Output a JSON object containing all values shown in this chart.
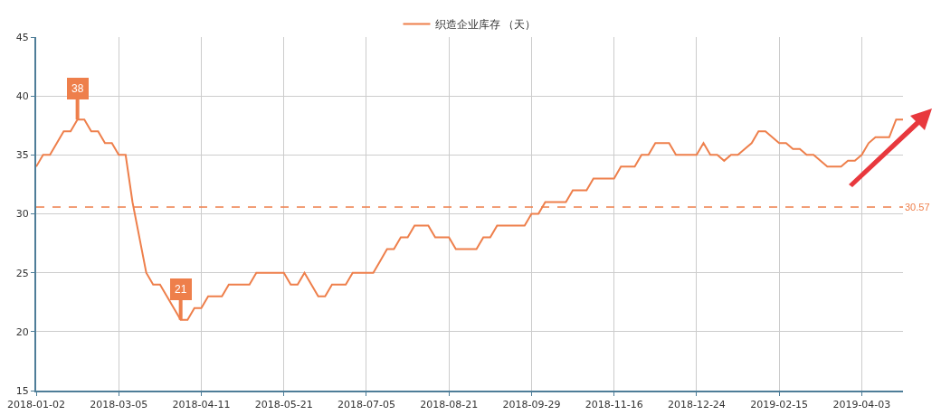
{
  "chart_data": {
    "type": "line",
    "categories": [
      "2018-01-02",
      null,
      null,
      null,
      null,
      null,
      null,
      null,
      null,
      null,
      null,
      null,
      "2018-03-05",
      null,
      null,
      null,
      null,
      null,
      null,
      null,
      null,
      null,
      null,
      null,
      "2018-04-11",
      null,
      null,
      null,
      null,
      null,
      null,
      null,
      null,
      null,
      null,
      null,
      "2018-05-21",
      null,
      null,
      null,
      null,
      null,
      null,
      null,
      null,
      null,
      null,
      null,
      "2018-07-05",
      null,
      null,
      null,
      null,
      null,
      null,
      null,
      null,
      null,
      null,
      null,
      "2018-08-21",
      null,
      null,
      null,
      null,
      null,
      null,
      null,
      null,
      null,
      null,
      null,
      "2018-09-29",
      null,
      null,
      null,
      null,
      null,
      null,
      null,
      null,
      null,
      null,
      null,
      "2018-11-16",
      null,
      null,
      null,
      null,
      null,
      null,
      null,
      null,
      null,
      null,
      null,
      "2018-12-24",
      null,
      null,
      null,
      null,
      null,
      null,
      null,
      null,
      null,
      null,
      null,
      "2019-02-15",
      null,
      null,
      null,
      null,
      null,
      null,
      null,
      null,
      null,
      null,
      null,
      "2019-04-03",
      null,
      null,
      null,
      null,
      null,
      null
    ],
    "series": [
      {
        "name": "织造企业库存 （天）",
        "color": "#ee7f4b",
        "values": [
          34,
          35,
          35,
          36,
          37,
          37,
          38,
          38,
          37,
          37,
          36,
          36,
          35,
          35,
          31,
          28,
          25,
          24,
          24,
          23,
          22,
          21,
          21,
          22,
          22,
          23,
          23,
          23,
          24,
          24,
          24,
          24,
          25,
          25,
          25,
          25,
          25,
          24,
          24,
          25,
          24,
          23,
          23,
          24,
          24,
          24,
          25,
          25,
          25,
          25,
          26,
          27,
          27,
          28,
          28,
          29,
          29,
          29,
          28,
          28,
          28,
          27,
          27,
          27,
          27,
          28,
          28,
          29,
          29,
          29,
          29,
          29,
          30,
          30,
          31,
          31,
          31,
          31,
          32,
          32,
          32,
          33,
          33,
          33,
          33,
          34,
          34,
          34,
          35,
          35,
          36,
          36,
          36,
          35,
          35,
          35,
          35,
          36,
          35,
          35,
          34.5,
          35,
          35,
          35.5,
          36,
          37,
          37,
          36.5,
          36,
          36,
          35.5,
          35.5,
          35,
          35,
          34.5,
          34,
          34,
          34,
          34.5,
          34.5,
          35,
          36,
          36.5,
          36.5,
          36.5,
          38,
          38
        ]
      }
    ],
    "ylim": [
      15,
      45
    ],
    "yticks": [
      15,
      20,
      25,
      30,
      35,
      40,
      45
    ],
    "ref_lines": [
      {
        "axis": "y",
        "value": 30.57,
        "label": "30.57",
        "color": "#ee7f4b",
        "line_style": "dashed"
      }
    ],
    "annotations": [
      {
        "text": "38",
        "y": 38
      },
      {
        "text": "21",
        "y": 21
      }
    ],
    "grid": true,
    "legend": "top",
    "marker": "none",
    "line_style": "solid"
  }
}
